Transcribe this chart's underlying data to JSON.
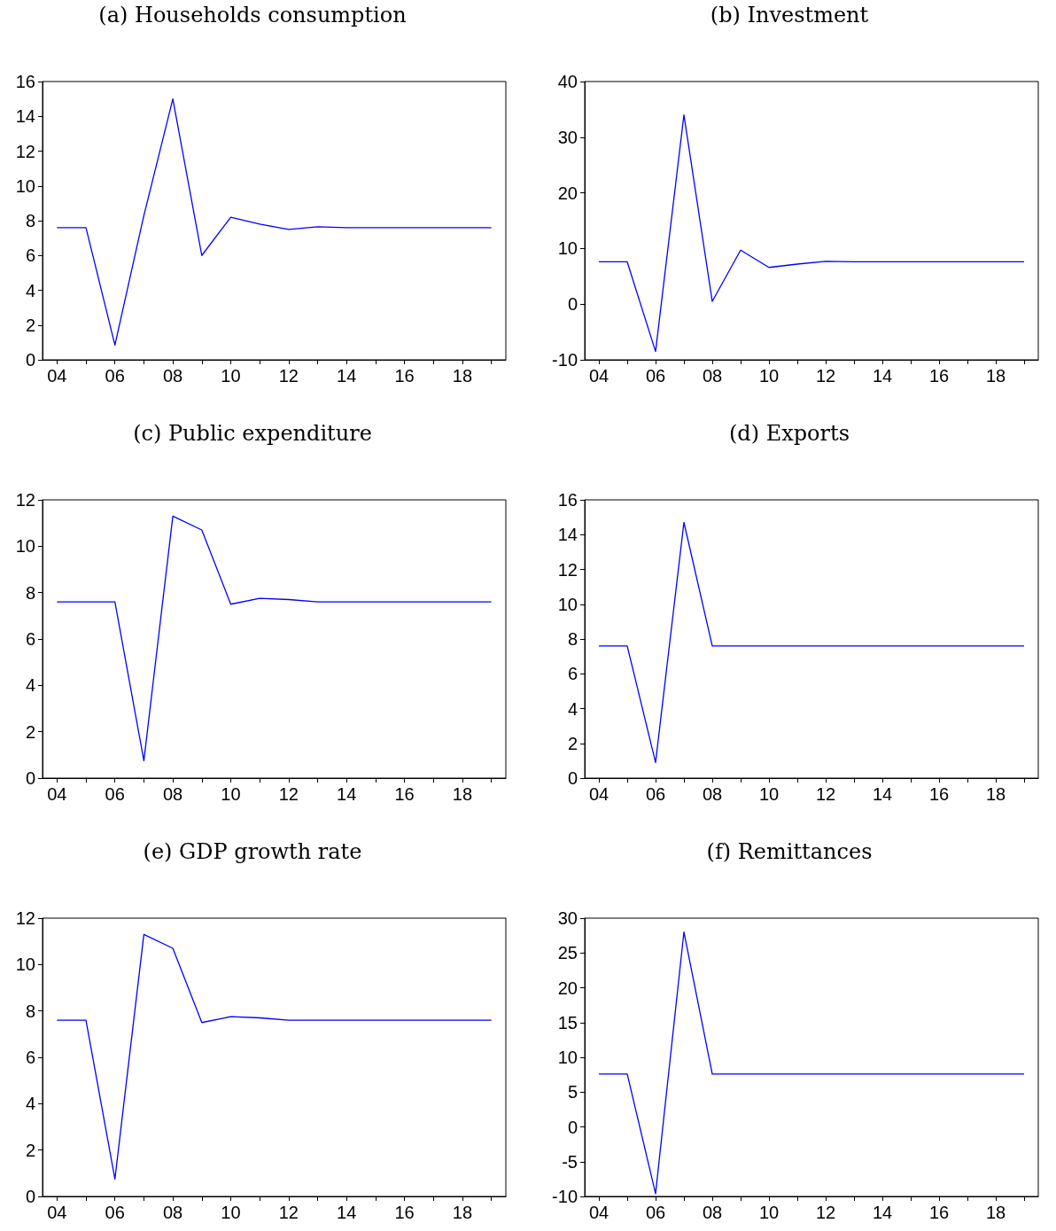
{
  "chart_data": [
    {
      "type": "line",
      "title": "(a) Households consumption",
      "categories": [
        "04",
        null,
        "06",
        null,
        "08",
        null,
        "10",
        null,
        "12",
        null,
        "14",
        null,
        "16",
        null,
        "18",
        null
      ],
      "color": "#0000ff",
      "values": [
        7.6,
        7.6,
        0.85,
        8.3,
        15,
        6,
        8.2,
        7.8,
        7.5,
        7.65,
        7.6,
        7.6,
        7.6,
        7.6,
        7.6,
        7.6
      ],
      "ylim": [
        0,
        16
      ],
      "yticks": [
        0,
        2,
        4,
        6,
        8,
        10,
        12,
        14,
        16
      ]
    },
    {
      "type": "line",
      "title": "(b) Investment",
      "categories": [
        "04",
        null,
        "06",
        null,
        "08",
        null,
        "10",
        null,
        "12",
        null,
        "14",
        null,
        "16",
        null,
        "18",
        null
      ],
      "color": "#0000ff",
      "values": [
        7.6,
        7.6,
        -8.5,
        34,
        0.5,
        9.7,
        6.6,
        7.2,
        7.7,
        7.6,
        7.6,
        7.6,
        7.6,
        7.6,
        7.6,
        7.6
      ],
      "ylim": [
        -10,
        40
      ],
      "yticks": [
        -10,
        0,
        10,
        20,
        30,
        40
      ]
    },
    {
      "type": "line",
      "title": "(c) Public expenditure",
      "categories": [
        "04",
        null,
        "06",
        null,
        "08",
        null,
        "10",
        null,
        "12",
        null,
        "14",
        null,
        "16",
        null,
        "18",
        null
      ],
      "color": "#0000ff",
      "values": [
        7.6,
        7.6,
        7.6,
        0.75,
        11.3,
        10.7,
        7.5,
        7.75,
        7.7,
        7.6,
        7.6,
        7.6,
        7.6,
        7.6,
        7.6,
        7.6
      ],
      "ylim": [
        0,
        12
      ],
      "yticks": [
        0,
        2,
        4,
        6,
        8,
        10,
        12
      ]
    },
    {
      "type": "line",
      "title": "(d) Exports",
      "categories": [
        "04",
        null,
        "06",
        null,
        "08",
        null,
        "10",
        null,
        "12",
        null,
        "14",
        null,
        "16",
        null,
        "18",
        null
      ],
      "color": "#0000ff",
      "values": [
        7.6,
        7.6,
        0.9,
        14.7,
        7.6,
        7.6,
        7.6,
        7.6,
        7.6,
        7.6,
        7.6,
        7.6,
        7.6,
        7.6,
        7.6,
        7.6
      ],
      "ylim": [
        0,
        16
      ],
      "yticks": [
        0,
        2,
        4,
        6,
        8,
        10,
        12,
        14,
        16
      ]
    },
    {
      "type": "line",
      "title": "(e) GDP growth rate",
      "categories": [
        "04",
        null,
        "06",
        null,
        "08",
        null,
        "10",
        null,
        "12",
        null,
        "14",
        null,
        "16",
        null,
        "18",
        null
      ],
      "color": "#0000ff",
      "values": [
        7.6,
        7.6,
        0.75,
        11.3,
        10.7,
        7.5,
        7.75,
        7.7,
        7.6,
        7.6,
        7.6,
        7.6,
        7.6,
        7.6,
        7.6,
        7.6
      ],
      "ylim": [
        0,
        12
      ],
      "yticks": [
        0,
        2,
        4,
        6,
        8,
        10,
        12
      ]
    },
    {
      "type": "line",
      "title": "(f) Remittances",
      "categories": [
        "04",
        null,
        "06",
        null,
        "08",
        null,
        "10",
        null,
        "12",
        null,
        "14",
        null,
        "16",
        null,
        "18",
        null
      ],
      "color": "#0000ff",
      "values": [
        7.6,
        7.6,
        -9.6,
        28,
        7.6,
        7.6,
        7.6,
        7.6,
        7.6,
        7.6,
        7.6,
        7.6,
        7.6,
        7.6,
        7.6,
        7.6
      ],
      "ylim": [
        -10,
        30
      ],
      "yticks": [
        -10,
        -5,
        0,
        5,
        10,
        15,
        20,
        25,
        30
      ]
    }
  ]
}
